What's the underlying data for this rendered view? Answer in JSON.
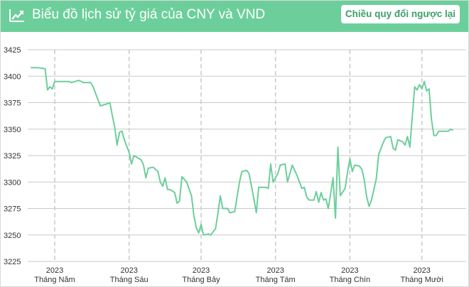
{
  "header": {
    "title": "Biểu đồ lịch sử tỷ giá của CNY và VND",
    "reverse_button": "Chiều quy đổi ngược lại",
    "logo_icon": "trending-up-icon"
  },
  "colors": {
    "header_bg": "#6ccf9b",
    "line": "#6ccf9b",
    "grid": "#c9c9c9",
    "button_text": "#3f9f6b"
  },
  "chart_data": {
    "type": "line",
    "title": "",
    "xlabel": "",
    "ylabel": "",
    "ylim": [
      3225,
      3425
    ],
    "yticks": [
      3425,
      3400,
      3375,
      3350,
      3325,
      3300,
      3275,
      3250,
      3225
    ],
    "grid": true,
    "x_tick_labels": [
      {
        "year": "2023",
        "month": "Tháng Năm",
        "day": 0
      },
      {
        "year": "2023",
        "month": "Tháng Sáu",
        "day": 31
      },
      {
        "year": "2023",
        "month": "Tháng Bảy",
        "day": 61
      },
      {
        "year": "2023",
        "month": "Tháng Tám",
        "day": 92
      },
      {
        "year": "2023",
        "month": "Tháng Chín",
        "day": 123
      },
      {
        "year": "2023",
        "month": "Tháng Mười",
        "day": 153
      }
    ],
    "series": [
      {
        "values": [
          [
            -10,
            3408
          ],
          [
            -7,
            3408
          ],
          [
            -4,
            3407
          ],
          [
            -3,
            3387
          ],
          [
            -2,
            3390
          ],
          [
            -1,
            3388
          ],
          [
            0,
            3395
          ],
          [
            3,
            3395
          ],
          [
            6,
            3395
          ],
          [
            7,
            3394
          ],
          [
            10,
            3396
          ],
          [
            12,
            3394
          ],
          [
            15,
            3394
          ],
          [
            16,
            3390
          ],
          [
            19,
            3372
          ],
          [
            22,
            3374
          ],
          [
            23,
            3375
          ],
          [
            24,
            3363
          ],
          [
            25,
            3352
          ],
          [
            26,
            3335
          ],
          [
            27,
            3347
          ],
          [
            28,
            3348
          ],
          [
            29,
            3340
          ],
          [
            31,
            3328
          ],
          [
            32,
            3317
          ],
          [
            33,
            3325
          ],
          [
            36,
            3321
          ],
          [
            37,
            3316
          ],
          [
            38,
            3304
          ],
          [
            39,
            3313
          ],
          [
            41,
            3314
          ],
          [
            43,
            3310
          ],
          [
            44,
            3300
          ],
          [
            45,
            3296
          ],
          [
            46,
            3304
          ],
          [
            47,
            3293
          ],
          [
            48,
            3293
          ],
          [
            50,
            3290
          ],
          [
            51,
            3280
          ],
          [
            52,
            3282
          ],
          [
            53,
            3305
          ],
          [
            55,
            3300
          ],
          [
            57,
            3287
          ],
          [
            58,
            3268
          ],
          [
            59,
            3257
          ],
          [
            60,
            3252
          ],
          [
            61,
            3260
          ],
          [
            62,
            3250
          ],
          [
            64,
            3251
          ],
          [
            65,
            3250
          ],
          [
            67,
            3256
          ],
          [
            68,
            3270
          ],
          [
            69,
            3287
          ],
          [
            70,
            3275
          ],
          [
            72,
            3275
          ],
          [
            73,
            3271
          ],
          [
            75,
            3272
          ],
          [
            77,
            3300
          ],
          [
            78,
            3310
          ],
          [
            80,
            3311
          ],
          [
            81,
            3308
          ],
          [
            82,
            3296
          ],
          [
            83,
            3284
          ],
          [
            84,
            3271
          ],
          [
            85,
            3295
          ],
          [
            88,
            3295
          ],
          [
            89,
            3294
          ],
          [
            90,
            3317
          ],
          [
            91,
            3300
          ],
          [
            93,
            3308
          ],
          [
            94,
            3316
          ],
          [
            96,
            3317
          ],
          [
            97,
            3300
          ],
          [
            99,
            3316
          ],
          [
            101,
            3306
          ],
          [
            103,
            3294
          ],
          [
            104,
            3295
          ],
          [
            105,
            3286
          ],
          [
            106,
            3283
          ],
          [
            108,
            3283
          ],
          [
            109,
            3291
          ],
          [
            110,
            3281
          ],
          [
            111,
            3290
          ],
          [
            112,
            3283
          ],
          [
            113,
            3284
          ],
          [
            114,
            3275
          ],
          [
            116,
            3304
          ],
          [
            117,
            3266
          ],
          [
            118,
            3333
          ],
          [
            119,
            3287
          ],
          [
            121,
            3294
          ],
          [
            122,
            3309
          ],
          [
            123,
            3322
          ],
          [
            124,
            3310
          ],
          [
            125,
            3316
          ],
          [
            127,
            3315
          ],
          [
            128,
            3312
          ],
          [
            129,
            3302
          ],
          [
            130,
            3286
          ],
          [
            131,
            3277
          ],
          [
            132,
            3283
          ],
          [
            134,
            3303
          ],
          [
            135,
            3326
          ],
          [
            137,
            3338
          ],
          [
            138,
            3342
          ],
          [
            140,
            3343
          ],
          [
            141,
            3332
          ],
          [
            142,
            3330
          ],
          [
            143,
            3340
          ],
          [
            145,
            3338
          ],
          [
            146,
            3335
          ],
          [
            147,
            3343
          ],
          [
            148,
            3333
          ],
          [
            149,
            3362
          ],
          [
            150,
            3390
          ],
          [
            151,
            3387
          ],
          [
            152,
            3392
          ],
          [
            153,
            3388
          ],
          [
            154,
            3395
          ],
          [
            155,
            3386
          ],
          [
            156,
            3388
          ],
          [
            157,
            3359
          ],
          [
            158,
            3344
          ],
          [
            159,
            3344
          ],
          [
            160,
            3348
          ],
          [
            162,
            3348
          ],
          [
            164,
            3348
          ],
          [
            165,
            3350
          ],
          [
            166,
            3349
          ]
        ]
      }
    ]
  }
}
